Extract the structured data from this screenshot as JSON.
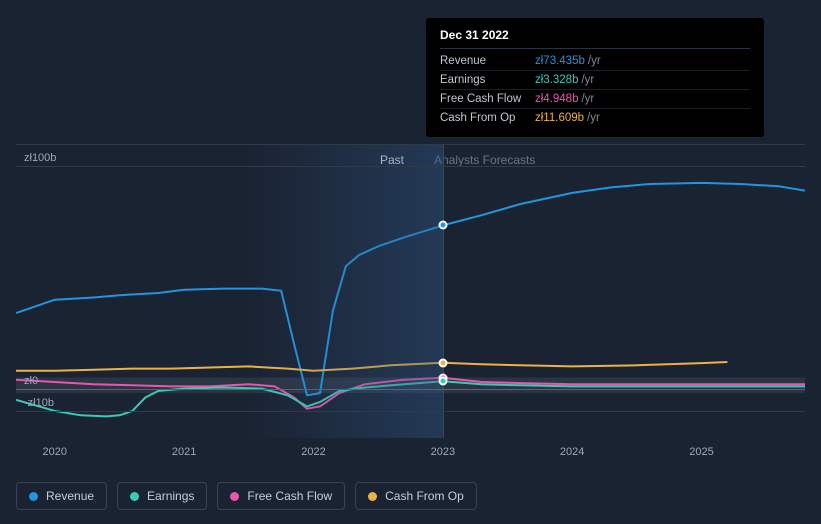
{
  "tooltip": {
    "title": "Dec 31 2022",
    "rows": [
      {
        "label": "Revenue",
        "value": "zł73.435b",
        "unit": "/yr",
        "color": "#2394df"
      },
      {
        "label": "Earnings",
        "value": "zł3.328b",
        "unit": "/yr",
        "color": "#3ec8b8"
      },
      {
        "label": "Free Cash Flow",
        "value": "zł4.948b",
        "unit": "/yr",
        "color": "#e857ae"
      },
      {
        "label": "Cash From Op",
        "value": "zł11.609b",
        "unit": "/yr",
        "color": "#eab344"
      }
    ]
  },
  "sections": {
    "past": {
      "label": "Past",
      "color": "#d4dae2"
    },
    "forecast": {
      "label": "Analysts Forecasts",
      "color": "#6a7384"
    }
  },
  "y_axis": {
    "ticks": [
      {
        "label": "zł100b",
        "value": 100
      },
      {
        "label": "zł0",
        "value": 0
      },
      {
        "label": "-zł10b",
        "value": -10
      }
    ],
    "ymin": -15,
    "ymax": 110
  },
  "x_axis": {
    "labels": [
      "2020",
      "2021",
      "2022",
      "2023",
      "2024",
      "2025"
    ],
    "xmin": 2019.7,
    "xmax": 2025.8,
    "highlight_start": 2021.5,
    "divider": 2023.0
  },
  "chart": {
    "type": "line",
    "background_color": "#1a2332",
    "grid_color": "#303a48",
    "line_width": 2,
    "zero_line_color": "#5a6372"
  },
  "series": {
    "revenue": {
      "color": "#2394df",
      "points": [
        [
          2019.7,
          34
        ],
        [
          2020.0,
          40
        ],
        [
          2020.3,
          41
        ],
        [
          2020.5,
          42
        ],
        [
          2020.8,
          43
        ],
        [
          2021.0,
          44.5
        ],
        [
          2021.3,
          45
        ],
        [
          2021.5,
          45
        ],
        [
          2021.6,
          45
        ],
        [
          2021.75,
          44
        ],
        [
          2021.85,
          20
        ],
        [
          2021.95,
          -3
        ],
        [
          2022.05,
          -2
        ],
        [
          2022.15,
          35
        ],
        [
          2022.25,
          55
        ],
        [
          2022.35,
          60
        ],
        [
          2022.5,
          64
        ],
        [
          2022.7,
          68
        ],
        [
          2023.0,
          73.4
        ],
        [
          2023.3,
          78
        ],
        [
          2023.6,
          83
        ],
        [
          2024.0,
          88
        ],
        [
          2024.3,
          90.5
        ],
        [
          2024.6,
          92
        ],
        [
          2025.0,
          92.5
        ],
        [
          2025.3,
          92
        ],
        [
          2025.6,
          91
        ],
        [
          2025.8,
          89
        ]
      ]
    },
    "earnings": {
      "color": "#3ec8b8",
      "points": [
        [
          2019.7,
          -5
        ],
        [
          2020.0,
          -10
        ],
        [
          2020.2,
          -12
        ],
        [
          2020.4,
          -12.5
        ],
        [
          2020.5,
          -12
        ],
        [
          2020.6,
          -10
        ],
        [
          2020.7,
          -4
        ],
        [
          2020.8,
          -1
        ],
        [
          2021.0,
          0
        ],
        [
          2021.3,
          0.5
        ],
        [
          2021.6,
          0
        ],
        [
          2021.8,
          -3
        ],
        [
          2021.95,
          -8
        ],
        [
          2022.05,
          -6
        ],
        [
          2022.2,
          -1
        ],
        [
          2022.4,
          0.5
        ],
        [
          2022.7,
          2
        ],
        [
          2023.0,
          3.3
        ],
        [
          2023.3,
          2
        ],
        [
          2023.6,
          1.5
        ],
        [
          2024.0,
          1
        ],
        [
          2024.5,
          1
        ],
        [
          2025.0,
          1
        ],
        [
          2025.5,
          1
        ],
        [
          2025.8,
          1
        ]
      ]
    },
    "fcf": {
      "color": "#e857ae",
      "points": [
        [
          2019.7,
          4
        ],
        [
          2020.0,
          3
        ],
        [
          2020.3,
          2
        ],
        [
          2020.6,
          1.5
        ],
        [
          2020.9,
          1
        ],
        [
          2021.2,
          1
        ],
        [
          2021.5,
          2
        ],
        [
          2021.7,
          1
        ],
        [
          2021.85,
          -4
        ],
        [
          2021.95,
          -9
        ],
        [
          2022.05,
          -8
        ],
        [
          2022.2,
          -2
        ],
        [
          2022.4,
          2
        ],
        [
          2022.7,
          4
        ],
        [
          2023.0,
          4.9
        ],
        [
          2023.3,
          3
        ],
        [
          2023.6,
          2.5
        ],
        [
          2024.0,
          2
        ],
        [
          2024.5,
          2
        ],
        [
          2025.0,
          2
        ],
        [
          2025.5,
          2
        ],
        [
          2025.8,
          2
        ]
      ]
    },
    "cashop": {
      "color": "#eab344",
      "points": [
        [
          2019.7,
          8
        ],
        [
          2020.0,
          8
        ],
        [
          2020.3,
          8.5
        ],
        [
          2020.6,
          9
        ],
        [
          2020.9,
          9
        ],
        [
          2021.2,
          9.5
        ],
        [
          2021.5,
          10
        ],
        [
          2021.8,
          9
        ],
        [
          2022.0,
          8
        ],
        [
          2022.3,
          9
        ],
        [
          2022.6,
          10.5
        ],
        [
          2023.0,
          11.6
        ],
        [
          2023.3,
          11
        ],
        [
          2023.6,
          10.5
        ],
        [
          2024.0,
          10
        ],
        [
          2024.5,
          10.5
        ],
        [
          2025.0,
          11.5
        ],
        [
          2025.2,
          12
        ]
      ]
    }
  },
  "markers": [
    {
      "series": "revenue",
      "x": 2023.0,
      "y": 73.4,
      "fill": "#2394df"
    },
    {
      "series": "cashop",
      "x": 2023.0,
      "y": 11.6,
      "fill": "#eab344"
    },
    {
      "series": "fcf",
      "x": 2023.0,
      "y": 4.9,
      "fill": "#e857ae"
    },
    {
      "series": "earnings",
      "x": 2023.0,
      "y": 3.3,
      "fill": "#3ec8b8"
    }
  ],
  "legend": [
    {
      "label": "Revenue",
      "color": "#2394df"
    },
    {
      "label": "Earnings",
      "color": "#3ec8b8"
    },
    {
      "label": "Free Cash Flow",
      "color": "#e857ae"
    },
    {
      "label": "Cash From Op",
      "color": "#eab344"
    }
  ]
}
